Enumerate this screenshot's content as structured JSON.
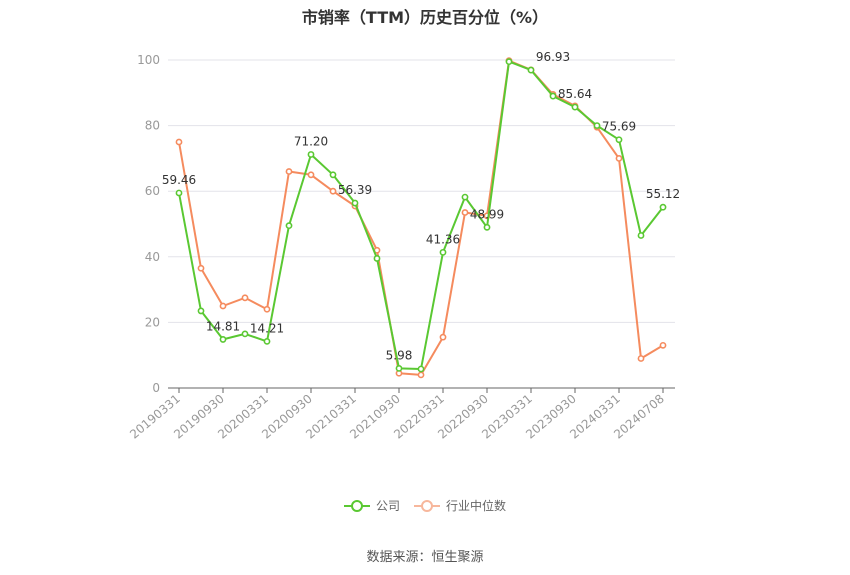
{
  "chart_data": {
    "type": "line",
    "title": "市销率（TTM）历史百分位（%）",
    "xlabel": "",
    "ylabel": "",
    "ylim": [
      0,
      100
    ],
    "yticks": [
      0,
      20,
      40,
      60,
      80,
      100
    ],
    "grid": true,
    "legend_position": "bottom",
    "x": [
      "20190331",
      "20190630",
      "20190930",
      "20191231",
      "20200331",
      "20200630",
      "20200930",
      "20201231",
      "20210331",
      "20210630",
      "20210930",
      "20211231",
      "20220331",
      "20220630",
      "20220930",
      "20221231",
      "20230331",
      "20230630",
      "20230930",
      "20231231",
      "20240331",
      "20240630",
      "20240708"
    ],
    "xtick_labels": [
      "20190331",
      "20190930",
      "20200331",
      "20200930",
      "20210331",
      "20210930",
      "20220331",
      "20220930",
      "20230331",
      "20230930",
      "20240331",
      "20240708"
    ],
    "series": [
      {
        "name": "公司",
        "color": "#5ac832",
        "values": [
          59.46,
          23.5,
          14.81,
          16.5,
          14.21,
          49.5,
          71.2,
          65.0,
          56.39,
          39.5,
          5.98,
          5.8,
          41.36,
          58.2,
          48.99,
          99.5,
          96.93,
          89.0,
          85.64,
          80.0,
          75.69,
          46.5,
          55.12
        ],
        "data_labels": {
          "0": "59.46",
          "2": "14.81",
          "4": "14.21",
          "6": "71.20",
          "8": "56.39",
          "10": "5.98",
          "12": "41.36",
          "14": "48.99",
          "16": "96.93",
          "18": "85.64",
          "20": "75.69",
          "22": "55.12"
        }
      },
      {
        "name": "行业中位数",
        "color": "#f58b5e",
        "values": [
          75.0,
          36.5,
          25.0,
          27.5,
          24.0,
          66.0,
          65.0,
          60.0,
          55.5,
          42.0,
          4.5,
          4.0,
          15.5,
          53.5,
          52.5,
          99.8,
          97.0,
          89.5,
          86.0,
          79.5,
          70.0,
          9.0,
          13.0
        ]
      }
    ]
  },
  "source_text": "数据来源：恒生聚源"
}
